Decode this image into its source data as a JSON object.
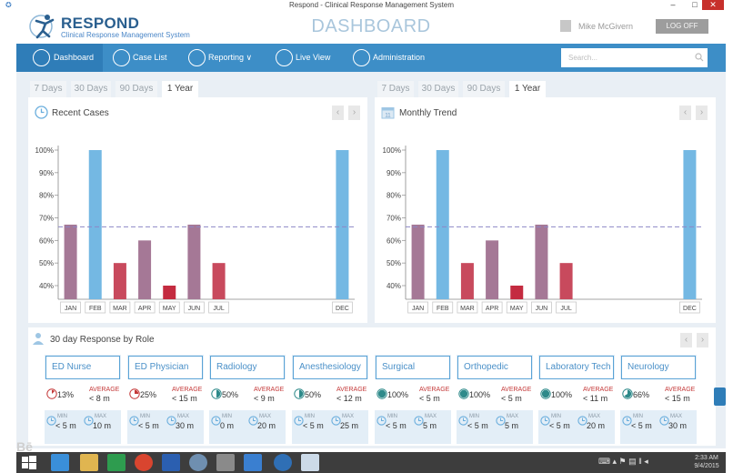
{
  "window": {
    "title": "Respond - Clinical Response Management System",
    "min": "–",
    "max": "□",
    "close": "✕",
    "app_icon": "✪"
  },
  "header": {
    "brand": "RESPOND",
    "brand_sub": "Clinical Response Management System",
    "page_title": "DASHBOARD",
    "user_name": "Mike McGivern",
    "logout": "LOG OFF"
  },
  "nav": {
    "items": [
      {
        "label": "Dashboard",
        "icon": "home-icon"
      },
      {
        "label": "Case List",
        "icon": "list-icon"
      },
      {
        "label": "Reporting ∨",
        "icon": "bar-chart-icon"
      },
      {
        "label": "Live View",
        "icon": "eye-icon"
      },
      {
        "label": "Administration",
        "icon": "admin-icon"
      }
    ],
    "search_placeholder": "Search..."
  },
  "range_tabs": [
    "7 Days",
    "30 Days",
    "90 Days",
    "1 Year"
  ],
  "pager": {
    "prev": "‹",
    "next": "›"
  },
  "recent_cases": {
    "title": "Recent Cases",
    "active_tab": "1 Year"
  },
  "monthly_trend": {
    "title": "Monthly Trend",
    "active_tab": "1 Year"
  },
  "chart_data": [
    {
      "type": "bar",
      "title": "Recent Cases",
      "categories": [
        "JAN",
        "FEB",
        "MAR",
        "APR",
        "MAY",
        "JUN",
        "JUL",
        "",
        "",
        "",
        "",
        "DEC"
      ],
      "values": [
        67,
        100,
        50,
        60,
        40,
        67,
        50,
        null,
        null,
        null,
        null,
        100
      ],
      "colors": [
        "#a57896",
        "#74b8e3",
        "#c84a5d",
        "#a57896",
        "#c42b40",
        "#a57896",
        "#c84a5d",
        null,
        null,
        null,
        null,
        "#74b8e3"
      ],
      "yticks": [
        "40%",
        "50%",
        "60%",
        "70%",
        "80%",
        "90%",
        "100%"
      ],
      "ylim": [
        35,
        100
      ],
      "reference_line": 66
    },
    {
      "type": "bar",
      "title": "Monthly Trend",
      "categories": [
        "JAN",
        "FEB",
        "MAR",
        "APR",
        "MAY",
        "JUN",
        "JUL",
        "",
        "",
        "",
        "",
        "DEC"
      ],
      "values": [
        67,
        100,
        50,
        60,
        40,
        67,
        50,
        null,
        null,
        null,
        null,
        100
      ],
      "colors": [
        "#a57896",
        "#74b8e3",
        "#c84a5d",
        "#a57896",
        "#c42b40",
        "#a57896",
        "#c84a5d",
        null,
        null,
        null,
        null,
        "#74b8e3"
      ],
      "yticks": [
        "40%",
        "50%",
        "60%",
        "70%",
        "80%",
        "90%",
        "100%"
      ],
      "ylim": [
        35,
        100
      ],
      "reference_line": 66
    }
  ],
  "roles_section": {
    "title": "30 day Response by Role",
    "avg_label": "AVERAGE",
    "min_label": "MIN",
    "max_label": "MAX",
    "roles": [
      {
        "name": "ED Nurse",
        "pct": "13%",
        "pct_value": 13,
        "avg": "< 8 m",
        "min": "< 5 m",
        "max": "10 m"
      },
      {
        "name": "ED Physician",
        "pct": "25%",
        "pct_value": 25,
        "avg": "< 15 m",
        "min": "< 5 m",
        "max": "30 m"
      },
      {
        "name": "Radiology",
        "pct": "50%",
        "pct_value": 50,
        "avg": "< 9 m",
        "min": "0 m",
        "max": "20 m"
      },
      {
        "name": "Anesthesiology",
        "pct": "50%",
        "pct_value": 50,
        "avg": "< 12 m",
        "min": "< 5 m",
        "max": "25 m"
      },
      {
        "name": "Surgical",
        "pct": "100%",
        "pct_value": 100,
        "avg": "< 5 m",
        "min": "< 5 m",
        "max": "5 m"
      },
      {
        "name": "Orthopedic",
        "pct": "100%",
        "pct_value": 100,
        "avg": "< 5 m",
        "min": "< 5 m",
        "max": "5 m"
      },
      {
        "name": "Laboratory Tech",
        "pct": "100%",
        "pct_value": 100,
        "avg": "< 11 m",
        "min": "< 5 m",
        "max": "20 m"
      },
      {
        "name": "Neurology",
        "pct": "66%",
        "pct_value": 66,
        "avg": "< 15 m",
        "min": "< 5 m",
        "max": "30 m"
      }
    ]
  },
  "taskbar": {
    "tray_text": "⌨ ▴ ⚑ ▤ ‖ ◂",
    "time": "2:33 AM",
    "date": "9/4/2015"
  },
  "colors": {
    "nav": "#3d8ec7",
    "accent": "#4a90c8",
    "content_bg": "#e9eff5",
    "role_red": "#c43838"
  }
}
